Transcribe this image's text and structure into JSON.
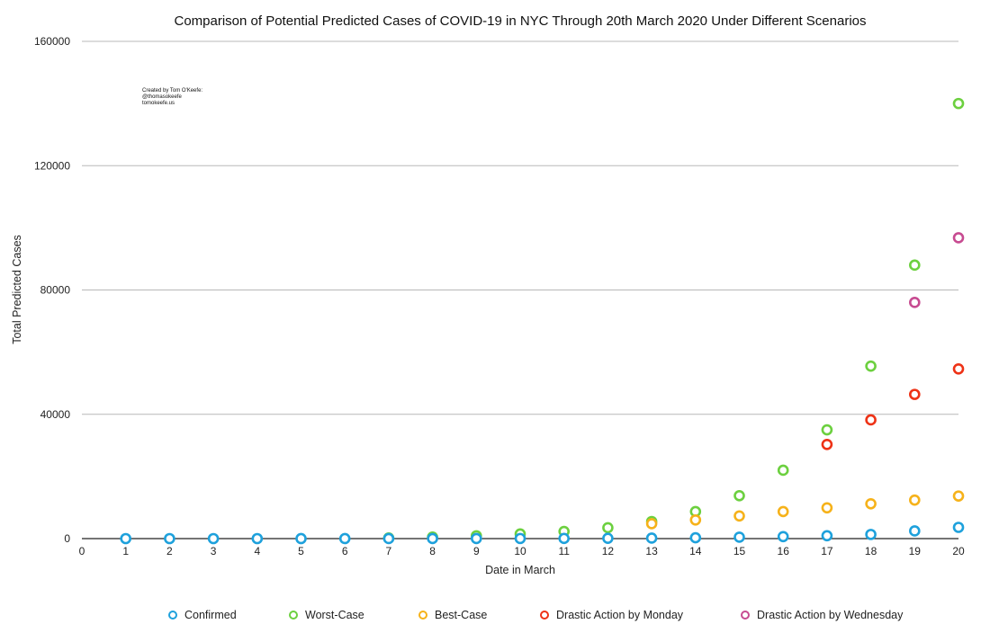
{
  "chart_data": {
    "type": "scatter",
    "title": "Comparison of Potential Predicted Cases of COVID-19 in NYC Through 20th March 2020 Under Different Scenarios",
    "xlabel": "Date in March",
    "ylabel": "Total Predicted Cases",
    "xlim": [
      0,
      20
    ],
    "ylim": [
      0,
      160000
    ],
    "x_ticks": [
      0,
      1,
      2,
      3,
      4,
      5,
      6,
      7,
      8,
      9,
      10,
      11,
      12,
      13,
      14,
      15,
      16,
      17,
      18,
      19,
      20
    ],
    "y_ticks": [
      0,
      40000,
      80000,
      120000,
      160000
    ],
    "grid": true,
    "legend_position": "bottom",
    "annotation": [
      "Created by Tom O'Keefe:",
      "@thomasokeefe",
      "tomokeefe.us"
    ],
    "series": [
      {
        "name": "Confirmed",
        "color": "#1ea1dc",
        "points": [
          [
            1,
            1
          ],
          [
            2,
            1
          ],
          [
            3,
            1
          ],
          [
            4,
            1
          ],
          [
            5,
            4
          ],
          [
            6,
            5
          ],
          [
            7,
            12
          ],
          [
            8,
            20
          ],
          [
            9,
            25
          ],
          [
            10,
            36
          ],
          [
            11,
            52
          ],
          [
            12,
            95
          ],
          [
            13,
            154
          ],
          [
            14,
            269
          ],
          [
            15,
            463
          ],
          [
            16,
            644
          ],
          [
            17,
            923
          ],
          [
            18,
            1339
          ],
          [
            19,
            2469
          ],
          [
            20,
            3615
          ]
        ]
      },
      {
        "name": "Worst-Case",
        "color": "#6cd03f",
        "points": [
          [
            7,
            200
          ],
          [
            8,
            500
          ],
          [
            9,
            900
          ],
          [
            10,
            1500
          ],
          [
            11,
            2300
          ],
          [
            12,
            3500
          ],
          [
            13,
            5500
          ],
          [
            14,
            8700
          ],
          [
            15,
            13800
          ],
          [
            16,
            22000
          ],
          [
            17,
            35000
          ],
          [
            18,
            55500
          ],
          [
            19,
            88000
          ],
          [
            20,
            140000
          ]
        ]
      },
      {
        "name": "Best-Case",
        "color": "#f6b21a",
        "points": [
          [
            13,
            4800
          ],
          [
            14,
            6000
          ],
          [
            15,
            7300
          ],
          [
            16,
            8700
          ],
          [
            17,
            9900
          ],
          [
            18,
            11200
          ],
          [
            19,
            12400
          ],
          [
            20,
            13700
          ]
        ]
      },
      {
        "name": "Drastic Action by Monday",
        "color": "#ee3216",
        "points": [
          [
            17,
            30300
          ],
          [
            18,
            38200
          ],
          [
            19,
            46400
          ],
          [
            20,
            54600
          ]
        ]
      },
      {
        "name": "Drastic Action by Wednesday",
        "color": "#c74b91",
        "points": [
          [
            19,
            76000
          ],
          [
            20,
            96800
          ]
        ]
      }
    ]
  }
}
